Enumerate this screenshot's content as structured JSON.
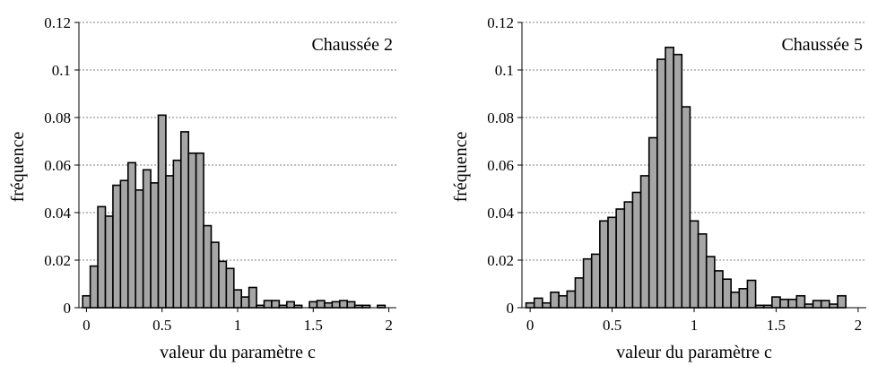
{
  "chart_data": [
    {
      "type": "bar",
      "title": "Chaussée 2",
      "xlabel": "valeur du paramètre c",
      "ylabel": "fréquence",
      "xlim": [
        -0.05,
        2.05
      ],
      "ylim": [
        0,
        0.12
      ],
      "yticks": [
        "0",
        "0.02",
        "0.04",
        "0.06",
        "0.08",
        "0.1",
        "0.12"
      ],
      "xticks": [
        "0",
        "0.5",
        "1",
        "1.5",
        "2"
      ],
      "grid": true,
      "bin_width": 0.05,
      "x": [
        0.0,
        0.05,
        0.1,
        0.15,
        0.2,
        0.25,
        0.3,
        0.35,
        0.4,
        0.45,
        0.5,
        0.55,
        0.6,
        0.65,
        0.7,
        0.75,
        0.8,
        0.85,
        0.9,
        0.95,
        1.0,
        1.05,
        1.1,
        1.15,
        1.2,
        1.25,
        1.3,
        1.35,
        1.4,
        1.45,
        1.5,
        1.55,
        1.6,
        1.65,
        1.7,
        1.75,
        1.8,
        1.85,
        1.9,
        1.95
      ],
      "values": [
        0.005,
        0.0175,
        0.0425,
        0.0385,
        0.0515,
        0.0535,
        0.061,
        0.0495,
        0.058,
        0.0525,
        0.081,
        0.0555,
        0.062,
        0.074,
        0.065,
        0.065,
        0.0345,
        0.0275,
        0.0195,
        0.0165,
        0.0075,
        0.0045,
        0.0085,
        0.001,
        0.003,
        0.003,
        0.001,
        0.0025,
        0.001,
        0.0,
        0.0025,
        0.003,
        0.002,
        0.0025,
        0.003,
        0.0025,
        0.001,
        0.001,
        0.0,
        0.001
      ]
    },
    {
      "type": "bar",
      "title": "Chaussée 5",
      "xlabel": "valeur du paramètre c",
      "ylabel": "fréquence",
      "xlim": [
        -0.05,
        2.05
      ],
      "ylim": [
        0,
        0.12
      ],
      "yticks": [
        "0",
        "0.02",
        "0.04",
        "0.06",
        "0.08",
        "0.1",
        "0.12"
      ],
      "xticks": [
        "0",
        "0.5",
        "1",
        "1.5",
        "2"
      ],
      "grid": true,
      "bin_width": 0.05,
      "x": [
        0.0,
        0.05,
        0.1,
        0.15,
        0.2,
        0.25,
        0.3,
        0.35,
        0.4,
        0.45,
        0.5,
        0.55,
        0.6,
        0.65,
        0.7,
        0.75,
        0.8,
        0.85,
        0.9,
        0.95,
        1.0,
        1.05,
        1.1,
        1.15,
        1.2,
        1.25,
        1.3,
        1.35,
        1.4,
        1.45,
        1.5,
        1.55,
        1.6,
        1.65,
        1.7,
        1.75,
        1.8,
        1.85,
        1.9,
        1.95
      ],
      "values": [
        0.002,
        0.004,
        0.002,
        0.0065,
        0.005,
        0.007,
        0.0125,
        0.0205,
        0.0225,
        0.0365,
        0.038,
        0.0415,
        0.0445,
        0.0485,
        0.0555,
        0.0715,
        0.1045,
        0.1095,
        0.1065,
        0.0845,
        0.0365,
        0.031,
        0.0215,
        0.0155,
        0.012,
        0.0065,
        0.008,
        0.0115,
        0.001,
        0.001,
        0.0045,
        0.0035,
        0.0035,
        0.005,
        0.0015,
        0.003,
        0.003,
        0.0015,
        0.005,
        0.0
      ]
    }
  ]
}
